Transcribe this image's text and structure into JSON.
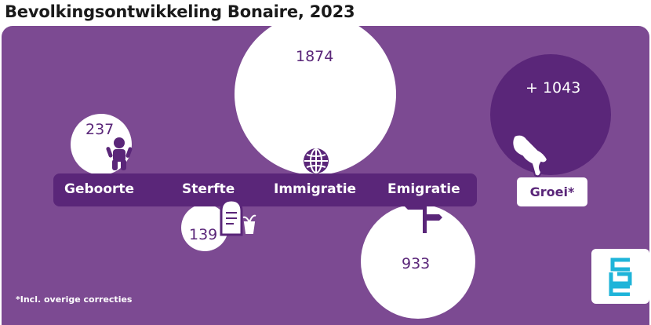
{
  "title": "Bevolkingsontwikkeling Bonaire, 2023",
  "chart_data": {
    "type": "bubble",
    "title": "Bevolkingsontwikkeling Bonaire, 2023",
    "categories": [
      "Geboorte",
      "Sterfte",
      "Immigratie",
      "Emigratie"
    ],
    "values": [
      237,
      139,
      1874,
      933
    ],
    "value_labels": [
      "237",
      "139",
      "1874",
      "933"
    ],
    "total": {
      "label": "Groei*",
      "value": 1043,
      "value_label": "+ 1043"
    },
    "footnote": "*Incl. overige correcties"
  },
  "icons": {
    "geboorte": "baby-icon",
    "sterfte": "gravestone-icon",
    "immigratie": "globe-icon",
    "emigratie": "signpost-icon",
    "groei": "bonaire-island-icon",
    "logo": "cbs-logo"
  },
  "colors": {
    "background": "#7c4a92",
    "accent_dark": "#5a2679",
    "bubble": "#ffffff",
    "logo": "#1fb4d9"
  }
}
